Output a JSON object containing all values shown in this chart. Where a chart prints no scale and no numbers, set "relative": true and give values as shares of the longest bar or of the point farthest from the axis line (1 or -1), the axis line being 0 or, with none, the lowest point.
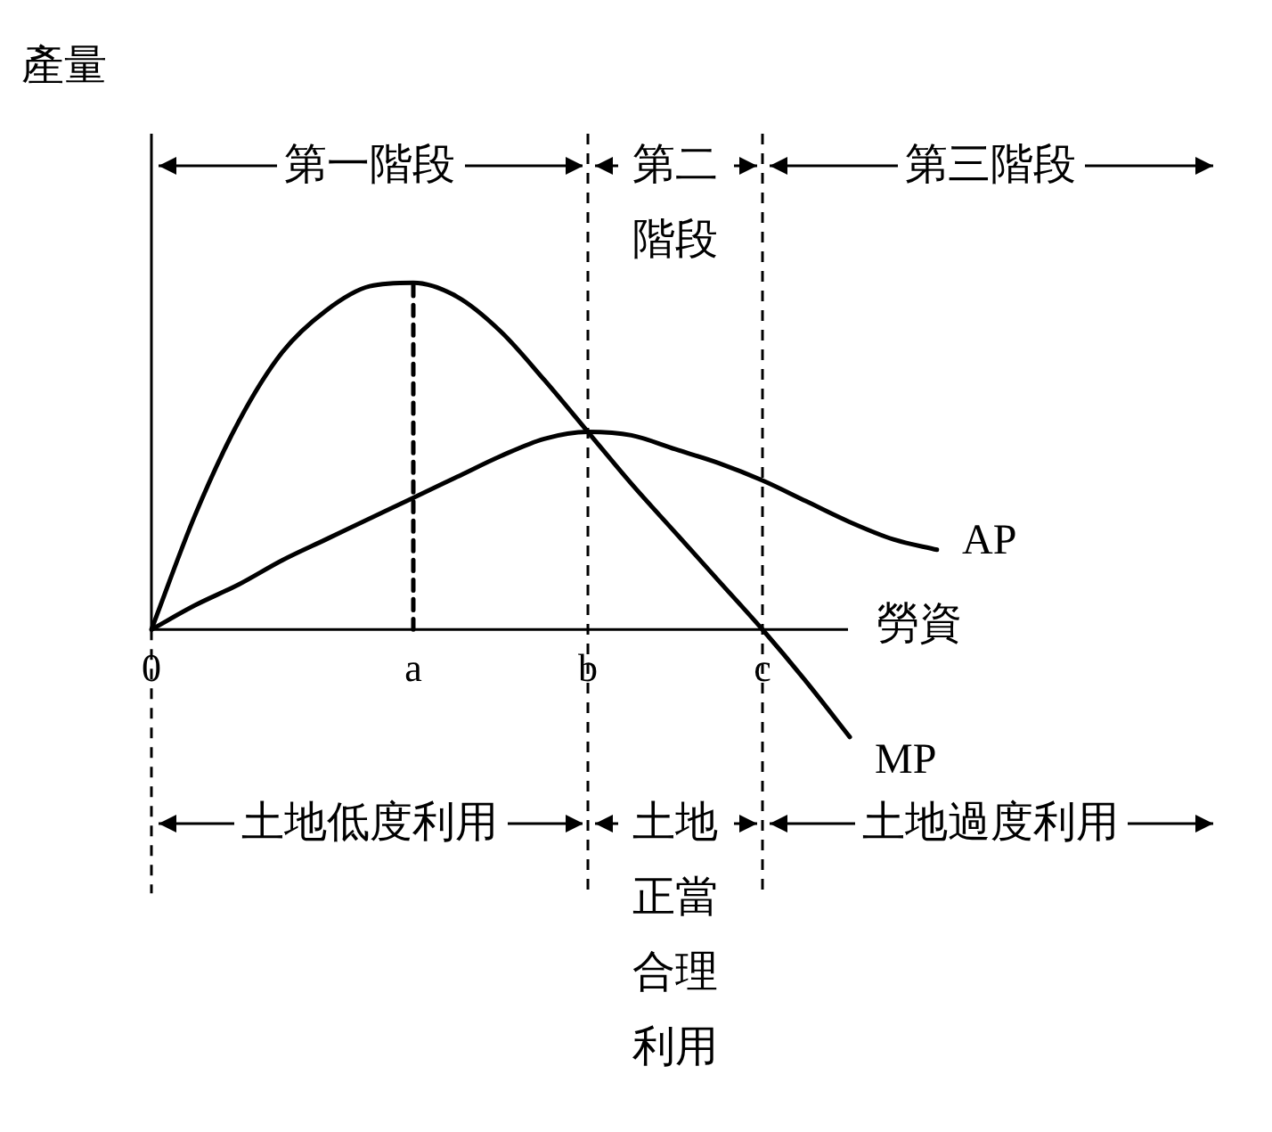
{
  "chart_data": {
    "type": "line",
    "relative": true,
    "xlabel": "勞資",
    "ylabel": "產量",
    "legend": false,
    "grid": false,
    "marker": "none",
    "line_style": "solid",
    "categories": [
      "0",
      null,
      null,
      null,
      null,
      null,
      "a",
      null,
      null,
      null,
      "b",
      null,
      null,
      null,
      "c",
      null,
      null,
      null,
      null
    ],
    "series": [
      {
        "name": "AP",
        "color": "#000000",
        "values": [
          0,
          0.07,
          0.13,
          0.2,
          0.26,
          0.32,
          0.38,
          0.44,
          0.5,
          0.55,
          0.57,
          0.56,
          0.52,
          0.48,
          0.43,
          0.37,
          0.31,
          0.26,
          0.23
        ]
      },
      {
        "name": "MP",
        "color": "#000000",
        "values": [
          0,
          0.33,
          0.6,
          0.8,
          0.92,
          0.99,
          1,
          0.96,
          0.86,
          0.72,
          0.57,
          0.42,
          0.28,
          0.14,
          0,
          -0.15,
          -0.31,
          null,
          null
        ]
      },
      {
        "type": "line",
        "x": [
          "a",
          "a"
        ],
        "values": [
          0,
          1
        ],
        "color": "#000000",
        "line_style": "dashed"
      }
    ],
    "ref_lines": [
      {
        "axis": "x",
        "value": "b",
        "line_style": "dashed"
      },
      {
        "axis": "x",
        "value": "c",
        "line_style": "dashed"
      }
    ],
    "annotations": [
      "第一階段",
      "第二階段",
      "第三階段",
      "土地低度利用",
      "土地正當合理利用",
      "土地過度利用"
    ]
  }
}
